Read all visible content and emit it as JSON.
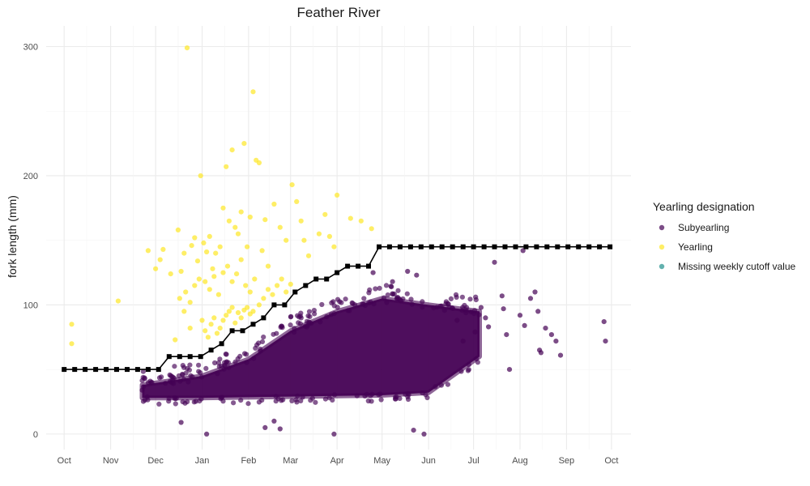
{
  "chart_data": {
    "type": "scatter",
    "title": "Feather River",
    "xlabel": "",
    "ylabel": "fork length (mm)",
    "x_ticks": [
      "Oct",
      "Nov",
      "Dec",
      "Jan",
      "Feb",
      "Mar",
      "Apr",
      "May",
      "Jun",
      "Jul",
      "Aug",
      "Sep",
      "Oct"
    ],
    "x_tick_dates": [
      "2020-10-01",
      "2020-11-01",
      "2020-12-01",
      "2021-01-01",
      "2021-02-01",
      "2021-03-01",
      "2021-04-01",
      "2021-05-01",
      "2021-06-01",
      "2021-07-01",
      "2021-08-01",
      "2021-09-01",
      "2021-10-01"
    ],
    "xlim": [
      "2020-09-19",
      "2021-10-14"
    ],
    "ylim": [
      -12,
      316
    ],
    "y_ticks": [
      0,
      100,
      200,
      300
    ],
    "grid": true,
    "legend": {
      "title": "Yearling designation",
      "position": "right",
      "entries": [
        {
          "label": "Subyearling",
          "color": "#440154"
        },
        {
          "label": "Yearling",
          "color": "#FDE725"
        },
        {
          "label": "Missing weekly cutoff value",
          "color": "#21908C"
        }
      ]
    },
    "cutoff_line": {
      "color": "#000000",
      "points": [
        [
          "2020-10-01",
          50
        ],
        [
          "2020-10-08",
          50
        ],
        [
          "2020-10-15",
          50
        ],
        [
          "2020-10-22",
          50
        ],
        [
          "2020-10-29",
          50
        ],
        [
          "2020-11-05",
          50
        ],
        [
          "2020-11-12",
          50
        ],
        [
          "2020-11-19",
          50
        ],
        [
          "2020-11-26",
          50
        ],
        [
          "2020-12-03",
          50
        ],
        [
          "2020-12-10",
          60
        ],
        [
          "2020-12-17",
          60
        ],
        [
          "2020-12-24",
          60
        ],
        [
          "2020-12-31",
          60
        ],
        [
          "2021-01-07",
          65
        ],
        [
          "2021-01-14",
          70
        ],
        [
          "2021-01-21",
          80
        ],
        [
          "2021-01-28",
          80
        ],
        [
          "2021-02-04",
          85
        ],
        [
          "2021-02-11",
          90
        ],
        [
          "2021-02-18",
          100
        ],
        [
          "2021-02-25",
          100
        ],
        [
          "2021-03-04",
          110
        ],
        [
          "2021-03-11",
          115
        ],
        [
          "2021-03-18",
          120
        ],
        [
          "2021-03-25",
          120
        ],
        [
          "2021-04-01",
          125
        ],
        [
          "2021-04-08",
          130
        ],
        [
          "2021-04-15",
          130
        ],
        [
          "2021-04-22",
          130
        ],
        [
          "2021-04-29",
          145
        ],
        [
          "2021-05-06",
          145
        ],
        [
          "2021-05-13",
          145
        ],
        [
          "2021-05-20",
          145
        ],
        [
          "2021-05-27",
          145
        ],
        [
          "2021-06-03",
          145
        ],
        [
          "2021-06-10",
          145
        ],
        [
          "2021-06-17",
          145
        ],
        [
          "2021-06-24",
          145
        ],
        [
          "2021-07-01",
          145
        ],
        [
          "2021-07-08",
          145
        ],
        [
          "2021-07-15",
          145
        ],
        [
          "2021-07-22",
          145
        ],
        [
          "2021-07-29",
          145
        ],
        [
          "2021-08-05",
          145
        ],
        [
          "2021-08-12",
          145
        ],
        [
          "2021-08-19",
          145
        ],
        [
          "2021-08-26",
          145
        ],
        [
          "2021-09-02",
          145
        ],
        [
          "2021-09-09",
          145
        ],
        [
          "2021-09-16",
          145
        ],
        [
          "2021-09-23",
          145
        ],
        [
          "2021-09-30",
          145
        ]
      ]
    },
    "series": [
      {
        "name": "Yearling",
        "color": "#FDE725",
        "points": [
          [
            "2020-10-06",
            85
          ],
          [
            "2020-10-06",
            70
          ],
          [
            "2020-11-06",
            103
          ],
          [
            "2020-11-26",
            142
          ],
          [
            "2020-12-01",
            128
          ],
          [
            "2020-12-04",
            135
          ],
          [
            "2020-12-06",
            143
          ],
          [
            "2020-12-11",
            124
          ],
          [
            "2020-12-16",
            158
          ],
          [
            "2020-12-18",
            126
          ],
          [
            "2020-12-20",
            140
          ],
          [
            "2020-12-22",
            299
          ],
          [
            "2020-12-25",
            146
          ],
          [
            "2020-12-27",
            152
          ],
          [
            "2020-12-29",
            134
          ],
          [
            "2020-12-31",
            200
          ],
          [
            "2021-01-02",
            148
          ],
          [
            "2021-01-04",
            141
          ],
          [
            "2021-01-06",
            153
          ],
          [
            "2021-01-08",
            128
          ],
          [
            "2021-01-10",
            140
          ],
          [
            "2021-01-13",
            145
          ],
          [
            "2021-01-15",
            175
          ],
          [
            "2021-01-17",
            207
          ],
          [
            "2021-01-19",
            165
          ],
          [
            "2021-01-21",
            220
          ],
          [
            "2021-01-23",
            160
          ],
          [
            "2021-01-25",
            155
          ],
          [
            "2021-01-27",
            172
          ],
          [
            "2021-01-29",
            225
          ],
          [
            "2021-01-31",
            145
          ],
          [
            "2021-02-02",
            168
          ],
          [
            "2021-02-04",
            265
          ],
          [
            "2021-02-06",
            212
          ],
          [
            "2021-02-08",
            210
          ],
          [
            "2021-02-10",
            142
          ],
          [
            "2021-02-12",
            166
          ],
          [
            "2021-02-14",
            130
          ],
          [
            "2021-02-18",
            178
          ],
          [
            "2021-02-22",
            160
          ],
          [
            "2021-02-26",
            150
          ],
          [
            "2021-03-02",
            193
          ],
          [
            "2021-03-05",
            180
          ],
          [
            "2021-03-08",
            165
          ],
          [
            "2021-03-10",
            150
          ],
          [
            "2021-03-13",
            138
          ],
          [
            "2021-03-20",
            155
          ],
          [
            "2021-03-24",
            170
          ],
          [
            "2021-03-27",
            153
          ],
          [
            "2021-03-30",
            145
          ],
          [
            "2021-04-01",
            185
          ],
          [
            "2021-04-10",
            167
          ],
          [
            "2021-04-17",
            165
          ],
          [
            "2021-04-24",
            159
          ],
          [
            "2020-12-17",
            105
          ],
          [
            "2020-12-21",
            110
          ],
          [
            "2020-12-24",
            102
          ],
          [
            "2020-12-27",
            115
          ],
          [
            "2020-12-30",
            120
          ],
          [
            "2021-01-03",
            118
          ],
          [
            "2021-01-06",
            112
          ],
          [
            "2021-01-09",
            122
          ],
          [
            "2021-01-12",
            108
          ],
          [
            "2021-01-15",
            125
          ],
          [
            "2021-01-18",
            130
          ],
          [
            "2021-01-21",
            118
          ],
          [
            "2021-01-24",
            124
          ],
          [
            "2021-01-27",
            135
          ],
          [
            "2021-01-30",
            115
          ],
          [
            "2021-02-02",
            110
          ],
          [
            "2021-02-05",
            120
          ],
          [
            "2021-02-08",
            100
          ],
          [
            "2021-02-11",
            105
          ],
          [
            "2021-02-14",
            112
          ],
          [
            "2021-02-17",
            108
          ],
          [
            "2021-02-20",
            115
          ],
          [
            "2021-02-23",
            120
          ],
          [
            "2021-02-26",
            110
          ],
          [
            "2021-03-01",
            116
          ],
          [
            "2021-01-01",
            88
          ],
          [
            "2021-01-03",
            80
          ],
          [
            "2021-01-05",
            75
          ],
          [
            "2021-01-07",
            85
          ],
          [
            "2021-01-09",
            90
          ],
          [
            "2021-01-11",
            78
          ],
          [
            "2021-01-13",
            82
          ],
          [
            "2021-01-15",
            88
          ],
          [
            "2021-01-17",
            92
          ],
          [
            "2021-01-19",
            95
          ],
          [
            "2021-01-21",
            98
          ],
          [
            "2021-01-23",
            86
          ],
          [
            "2021-01-25",
            94
          ],
          [
            "2021-01-27",
            90
          ],
          [
            "2021-01-29",
            96
          ],
          [
            "2021-01-31",
            98
          ],
          [
            "2021-02-02",
            93
          ],
          [
            "2021-02-04",
            95
          ],
          [
            "2020-12-20",
            95
          ],
          [
            "2020-12-24",
            82
          ],
          [
            "2020-12-14",
            73
          ]
        ]
      },
      {
        "name": "Subyearling",
        "color": "#440154",
        "points": [
          [
            "2020-11-22",
            34
          ],
          [
            "2020-12-18",
            9
          ],
          [
            "2021-01-04",
            0
          ],
          [
            "2021-02-12",
            5
          ],
          [
            "2021-02-18",
            10
          ],
          [
            "2021-02-22",
            4
          ],
          [
            "2021-03-30",
            0
          ],
          [
            "2021-05-22",
            3
          ],
          [
            "2021-05-29",
            0
          ],
          [
            "2021-07-20",
            107
          ],
          [
            "2021-07-21",
            97
          ],
          [
            "2021-07-25",
            50
          ],
          [
            "2021-07-23",
            77
          ],
          [
            "2021-08-01",
            92
          ],
          [
            "2021-08-04",
            84
          ],
          [
            "2021-08-08",
            105
          ],
          [
            "2021-08-11",
            110
          ],
          [
            "2021-08-13",
            95
          ],
          [
            "2021-08-14",
            65
          ],
          [
            "2021-08-15",
            63
          ],
          [
            "2021-08-18",
            82
          ],
          [
            "2021-08-22",
            77
          ],
          [
            "2021-08-25",
            72
          ],
          [
            "2021-08-28",
            61
          ],
          [
            "2021-08-03",
            142
          ],
          [
            "2021-07-15",
            133
          ],
          [
            "2021-09-26",
            87
          ],
          [
            "2021-09-27",
            72
          ],
          [
            "2021-07-06",
            98
          ],
          [
            "2021-07-09",
            90
          ],
          [
            "2021-07-11",
            83
          ],
          [
            "2021-07-02",
            79
          ],
          [
            "2021-06-20",
            88
          ],
          [
            "2021-06-24",
            72
          ],
          [
            "2021-05-24",
            123
          ],
          [
            "2021-05-18",
            126
          ],
          [
            "2021-04-25",
            125
          ],
          [
            "2021-05-08",
            118
          ]
        ]
      },
      {
        "name": "Missing weekly cutoff value",
        "color": "#21908C",
        "points": []
      }
    ],
    "dense_subyearling_band": {
      "color": "#440154",
      "date_from": "2020-11-22",
      "date_to": "2021-07-05",
      "lower_mm": [
        [
          "2020-11-22",
          28
        ],
        [
          "2021-01-01",
          28
        ],
        [
          "2021-03-01",
          29
        ],
        [
          "2021-05-01",
          30
        ],
        [
          "2021-06-01",
          32
        ],
        [
          "2021-07-05",
          60
        ]
      ],
      "upper_mm": [
        [
          "2020-11-22",
          38
        ],
        [
          "2021-01-01",
          45
        ],
        [
          "2021-02-01",
          58
        ],
        [
          "2021-03-01",
          80
        ],
        [
          "2021-04-01",
          95
        ],
        [
          "2021-05-01",
          105
        ],
        [
          "2021-06-01",
          100
        ],
        [
          "2021-07-05",
          95
        ]
      ]
    }
  }
}
